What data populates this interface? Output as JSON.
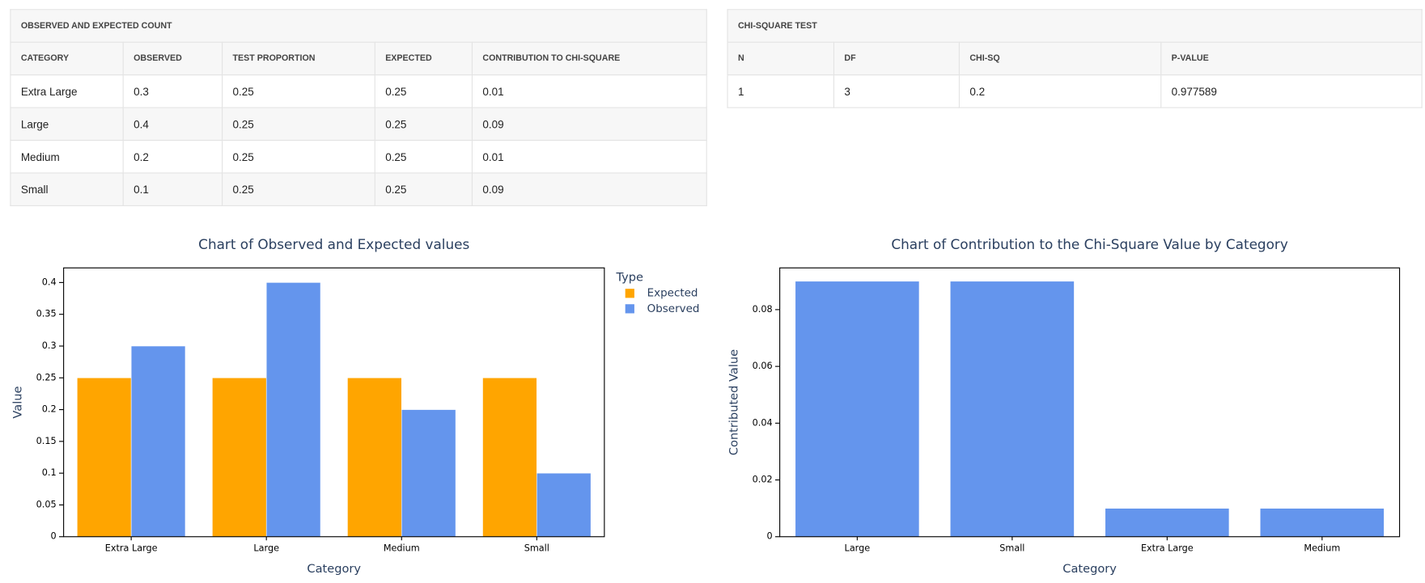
{
  "observed_table": {
    "title": "OBSERVED AND EXPECTED COUNT",
    "columns": [
      "CATEGORY",
      "OBSERVED",
      "TEST PROPORTION",
      "EXPECTED",
      "CONTRIBUTION TO CHI-SQUARE"
    ],
    "rows": [
      [
        "Extra Large",
        "0.3",
        "0.25",
        "0.25",
        "0.01"
      ],
      [
        "Large",
        "0.4",
        "0.25",
        "0.25",
        "0.09"
      ],
      [
        "Medium",
        "0.2",
        "0.25",
        "0.25",
        "0.01"
      ],
      [
        "Small",
        "0.1",
        "0.25",
        "0.25",
        "0.09"
      ]
    ]
  },
  "chi_square_table": {
    "title": "CHI-SQUARE TEST",
    "columns": [
      "N",
      "DF",
      "CHI-SQ",
      "P-VALUE"
    ],
    "rows": [
      [
        "1",
        "3",
        "0.2",
        "0.977589"
      ]
    ]
  },
  "chart_data": [
    {
      "type": "bar",
      "title": "Chart of Observed and Expected values",
      "x_label": "Category",
      "y_label": "Value",
      "legend_title": "Type",
      "categories": [
        "Extra Large",
        "Large",
        "Medium",
        "Small"
      ],
      "series": [
        {
          "name": "Expected",
          "color": "#ffa500",
          "values": [
            0.25,
            0.25,
            0.25,
            0.25
          ]
        },
        {
          "name": "Observed",
          "color": "#6495ed",
          "values": [
            0.3,
            0.4,
            0.2,
            0.1
          ]
        }
      ],
      "ylim": [
        0,
        0.423
      ],
      "yticks": [
        0,
        0.05,
        0.1,
        0.15,
        0.2,
        0.25,
        0.3,
        0.35,
        0.4
      ]
    },
    {
      "type": "bar",
      "title": "Chart of Contribution to the Chi-Square Value by Category",
      "x_label": "Category",
      "y_label": "Contributed Value",
      "categories": [
        "Large",
        "Small",
        "Extra Large",
        "Medium"
      ],
      "values": [
        0.09,
        0.09,
        0.01,
        0.01
      ],
      "color": "#6495ed",
      "ylim": [
        0,
        0.0947
      ],
      "yticks": [
        0,
        0.02,
        0.04,
        0.06,
        0.08
      ]
    }
  ]
}
